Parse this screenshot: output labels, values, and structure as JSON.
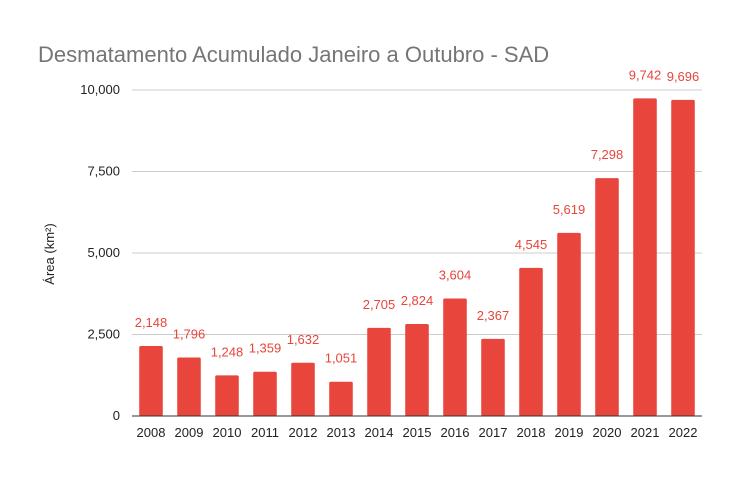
{
  "chart_data": {
    "type": "bar",
    "title": "Desmatamento Acumulado Janeiro a Outubro - SAD",
    "ylabel": "Área (km²)",
    "xlabel": "",
    "categories": [
      "2008",
      "2009",
      "2010",
      "2011",
      "2012",
      "2013",
      "2014",
      "2015",
      "2016",
      "2017",
      "2018",
      "2019",
      "2020",
      "2021",
      "2022"
    ],
    "values": [
      2148,
      1796,
      1248,
      1359,
      1632,
      1051,
      2705,
      2824,
      3604,
      2367,
      4545,
      5619,
      7298,
      9742,
      9696
    ],
    "value_labels": [
      "2,148",
      "1,796",
      "1,248",
      "1,359",
      "1,632",
      "1,051",
      "2,705",
      "2,824",
      "3,604",
      "2,367",
      "4,545",
      "5,619",
      "7,298",
      "9,742",
      "9,696"
    ],
    "ylim": [
      0,
      10000
    ],
    "yticks": [
      0,
      2500,
      5000,
      7500,
      10000
    ],
    "ytick_labels": [
      "0",
      "2,500",
      "5,000",
      "7,500",
      "10,000"
    ],
    "grid": true,
    "legend": "none",
    "colors": {
      "bar": "#e8453c",
      "label": "#e8453c",
      "title": "#757575",
      "grid": "#cccccc"
    }
  }
}
